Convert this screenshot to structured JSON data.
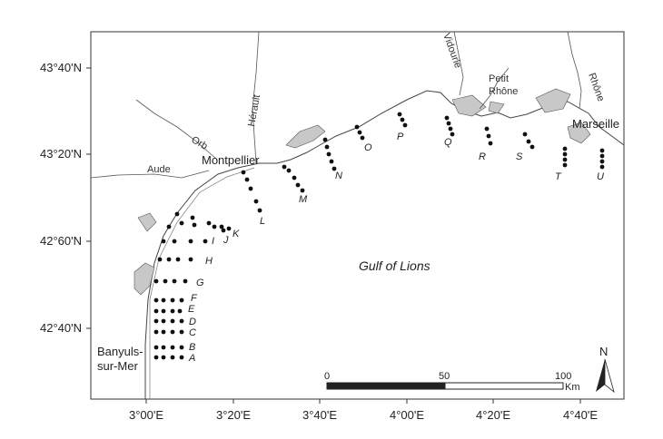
{
  "map": {
    "sea_label": "Gulf of Lions",
    "lat_ticks": [
      "43°40'N",
      "43°20'N",
      "42°60'N",
      "42°40'N"
    ],
    "lon_ticks": [
      "3°00'E",
      "3°20'E",
      "3°40'E",
      "4°00'E",
      "4°20'E",
      "4°40'E"
    ],
    "places": {
      "montpellier": "Montpellier",
      "marseille": "Marseille",
      "banyuls_line1": "Banyuls-",
      "banyuls_line2": "sur-Mer"
    },
    "rivers": {
      "aude": "Aude",
      "orb": "Orb",
      "herault": "Hérault",
      "vidourle": "Vidourle",
      "petit_rhone_line1": "Petit",
      "petit_rhone_line2": "Rhône",
      "rhone": "Rhône"
    },
    "transects": [
      "A",
      "B",
      "C",
      "D",
      "E",
      "F",
      "G",
      "H",
      "I",
      "J",
      "K",
      "L",
      "M",
      "N",
      "O",
      "P",
      "Q",
      "R",
      "S",
      "T",
      "U"
    ],
    "scale_bar": {
      "labels": [
        "0",
        "50",
        "100"
      ],
      "unit": "Km"
    },
    "north_label": "N",
    "colors": {
      "land_fill": "#ffffff",
      "lagoon_fill": "#c8c8c8",
      "frame": "#333333",
      "points": "#111111"
    }
  }
}
